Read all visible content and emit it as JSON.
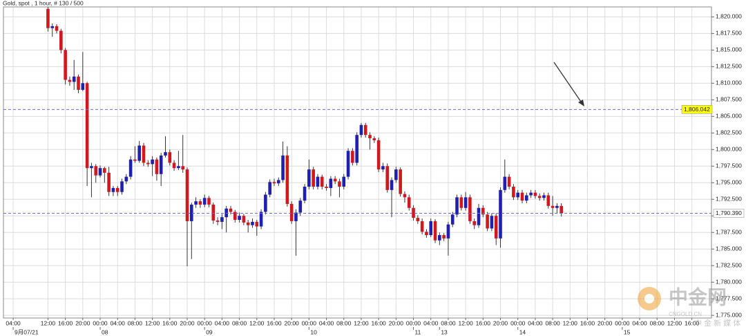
{
  "chart_data": {
    "type": "candlestick",
    "title": "Gold, spot , 1 hour, # 130 / 500",
    "categories": [
      "04:00",
      null,
      null,
      null,
      null,
      null,
      null,
      null,
      "12:00",
      null,
      null,
      null,
      "16:00",
      null,
      null,
      null,
      "20:00",
      null,
      null,
      null,
      "00:00",
      null,
      null,
      null,
      "04:00",
      null,
      null,
      null,
      "08:00",
      null,
      null,
      null,
      "12:00",
      null,
      null,
      null,
      "16:00",
      null,
      null,
      null,
      "20:00",
      null,
      null,
      null,
      "00:00",
      null,
      null,
      null,
      "04:00",
      null,
      null,
      null,
      "08:00",
      null,
      null,
      null,
      "12:00",
      null,
      null,
      null,
      "16:00",
      null,
      null,
      null,
      "20:00",
      null,
      null,
      null,
      "00:00",
      null,
      null,
      null,
      "04:00",
      null,
      null,
      null,
      "08:00",
      null,
      null,
      null,
      "12:00",
      null,
      null,
      null,
      "16:00",
      null,
      null,
      null,
      "20:00",
      null,
      null,
      null,
      "00:00",
      null,
      null,
      null,
      "04:00",
      null,
      null,
      null,
      "08:00",
      null,
      null,
      null,
      "12:00",
      null,
      null,
      null,
      "16:00",
      null,
      null,
      null,
      "20:00",
      null,
      null,
      null,
      "00:00",
      null,
      null,
      null,
      "04:00",
      null,
      null,
      null,
      "08:00",
      null,
      null,
      null,
      "12:00",
      null,
      null,
      null,
      "16:00",
      null,
      null,
      null,
      "20:00",
      null,
      null,
      null,
      "00:00",
      null,
      null,
      null,
      "04:00",
      null,
      null,
      null,
      "08:00",
      null,
      null,
      null,
      "12:00",
      null,
      null,
      null,
      "16:00",
      null,
      null,
      null,
      null
    ],
    "date_labels": [
      {
        "value": 0,
        "label": "9月07/21"
      },
      {
        "value": 20,
        "label": "08"
      },
      {
        "value": 44,
        "label": "09"
      },
      {
        "value": 68,
        "label": "10"
      },
      {
        "value": 92,
        "label": "11"
      },
      {
        "value": 98,
        "label": "13"
      },
      {
        "value": 116,
        "label": "14"
      },
      {
        "value": 140,
        "label": "15"
      }
    ],
    "open": [
      null,
      null,
      null,
      null,
      null,
      null,
      null,
      null,
      1821.2,
      1818.3,
      1818.6,
      1817.9,
      1815.0,
      1810.5,
      1810.2,
      1811.0,
      1809.0,
      1810.0,
      1797.2,
      1797.5,
      1796.1,
      1797.2,
      1796.5,
      1793.6,
      1794.2,
      1793.6,
      1795.2,
      1795.9,
      1798.5,
      1798.3,
      1800.6,
      1798.0,
      1797.8,
      1798.5,
      1796.3,
      1799.1,
      1799.6,
      1798.0,
      1797.2,
      1797.5,
      1797.0,
      1789.2,
      1791.7,
      1792.2,
      1791.7,
      1792.7,
      1791.7,
      1789.3,
      1789.1,
      1789.8,
      1791.1,
      1790.6,
      1789.4,
      1790.0,
      1789.0,
      1788.6,
      1789.1,
      1788.4,
      1790.6,
      1793.2,
      1795.1,
      1794.9,
      1795.4,
      1799.1,
      1791.8,
      1789.2,
      1790.5,
      1792.3,
      1794.4,
      1797.0,
      1794.4,
      1795.9,
      1794.4,
      1794.2,
      1795.6,
      1795.2,
      1794.4,
      1795.9,
      1799.8,
      1798.0,
      1802.2,
      1803.7,
      1802.2,
      1801.7,
      1801.4,
      1797.0,
      1797.5,
      1793.9,
      1795.4,
      1797.0,
      1793.3,
      1792.8,
      1791.2,
      1789.7,
      1789.2,
      1787.6,
      1787.1,
      1789.2,
      1786.3,
      1787.1,
      1786.6,
      1788.7,
      1790.2,
      1792.8,
      1791.2,
      1792.8,
      1789.2,
      1788.6,
      1791.2,
      1790.2,
      1788.1,
      1790.0,
      1786.6,
      1793.9,
      1795.9,
      1794.4,
      1792.8,
      1793.5,
      1792.3,
      1793.1,
      1793.5,
      1793.0,
      1792.7,
      1793.1,
      1791.5,
      1791.2,
      1791.5,
      null,
      null,
      null,
      null,
      null,
      null,
      null,
      null,
      null,
      null,
      null,
      null,
      null,
      null,
      null,
      null,
      null,
      null,
      null,
      null,
      null,
      null,
      null,
      null,
      null,
      null,
      null,
      null,
      null,
      null,
      null,
      null,
      null,
      null
    ],
    "high": [
      null,
      null,
      null,
      null,
      null,
      null,
      null,
      null,
      1821.5,
      1819.0,
      1818.9,
      1818.2,
      1815.3,
      1811.0,
      1813.5,
      1811.3,
      1814.7,
      1810.2,
      1798.0,
      1797.8,
      1797.6,
      1797.4,
      1797.4,
      1794.5,
      1794.5,
      1795.6,
      1796.3,
      1799.0,
      1800.5,
      1801.3,
      1801.0,
      1798.4,
      1799.0,
      1798.8,
      1799.5,
      1802.0,
      1800.0,
      1798.4,
      1799.8,
      1802.2,
      1797.3,
      1792.0,
      1792.8,
      1792.5,
      1793.2,
      1793.0,
      1792.0,
      1789.8,
      1790.3,
      1791.5,
      1791.5,
      1790.9,
      1790.5,
      1790.3,
      1789.4,
      1789.6,
      1789.4,
      1791.0,
      1793.6,
      1795.5,
      1795.6,
      1795.8,
      1801.2,
      1800.5,
      1792.2,
      1791.0,
      1792.7,
      1794.8,
      1798.5,
      1797.4,
      1796.3,
      1796.2,
      1794.8,
      1796.0,
      1796.0,
      1795.6,
      1796.3,
      1800.2,
      1800.2,
      1802.6,
      1804.0,
      1804.0,
      1802.6,
      1802.0,
      1801.8,
      1798.0,
      1797.9,
      1795.8,
      1797.4,
      1797.3,
      1793.7,
      1793.2,
      1791.6,
      1790.1,
      1789.6,
      1788.0,
      1789.6,
      1789.5,
      1787.5,
      1787.4,
      1789.1,
      1790.6,
      1793.2,
      1793.2,
      1793.6,
      1793.2,
      1789.6,
      1791.8,
      1791.6,
      1790.6,
      1790.4,
      1790.4,
      1794.3,
      1798.5,
      1796.3,
      1794.8,
      1793.9,
      1793.9,
      1793.5,
      1793.9,
      1793.9,
      1793.4,
      1793.5,
      1793.5,
      1793.0,
      1791.9,
      1791.9,
      null,
      null,
      null,
      null,
      null,
      null,
      null,
      null,
      null,
      null,
      null,
      null,
      null,
      null,
      null,
      null,
      null,
      null,
      null,
      null,
      null,
      null,
      null,
      null,
      null,
      null,
      null,
      null,
      null,
      null,
      null,
      null,
      null,
      null
    ],
    "low": [
      null,
      null,
      null,
      null,
      null,
      null,
      null,
      null,
      1817.8,
      1817.0,
      1817.5,
      1814.5,
      1809.8,
      1809.6,
      1809.0,
      1808.5,
      1808.8,
      1794.5,
      1792.8,
      1795.0,
      1795.8,
      1795.0,
      1793.0,
      1793.0,
      1793.0,
      1793.2,
      1794.8,
      1795.5,
      1798.0,
      1798.0,
      1797.5,
      1797.4,
      1796.0,
      1795.3,
      1794.5,
      1798.8,
      1797.6,
      1796.8,
      1796.9,
      1796.5,
      1782.4,
      1783.5,
      1791.2,
      1791.2,
      1791.3,
      1791.3,
      1788.8,
      1788.6,
      1788.0,
      1787.5,
      1790.2,
      1789.0,
      1789.0,
      1788.6,
      1787.5,
      1788.2,
      1787.0,
      1788.0,
      1790.2,
      1792.8,
      1794.5,
      1794.5,
      1795.0,
      1791.4,
      1788.8,
      1784.0,
      1790.0,
      1791.9,
      1794.0,
      1794.0,
      1794.0,
      1794.0,
      1793.8,
      1793.0,
      1794.8,
      1792.8,
      1794.0,
      1795.5,
      1797.6,
      1797.6,
      1801.8,
      1801.8,
      1800.0,
      1801.0,
      1796.6,
      1796.6,
      1793.5,
      1789.8,
      1795.0,
      1792.9,
      1792.0,
      1790.8,
      1789.3,
      1788.8,
      1787.2,
      1786.7,
      1786.8,
      1785.9,
      1785.6,
      1786.2,
      1784.0,
      1788.3,
      1789.8,
      1790.8,
      1790.8,
      1788.8,
      1788.0,
      1788.2,
      1789.8,
      1787.7,
      1787.7,
      1785.6,
      1785.2,
      1793.5,
      1794.0,
      1792.4,
      1792.4,
      1791.9,
      1791.9,
      1792.7,
      1792.6,
      1792.3,
      1792.3,
      1791.1,
      1790.0,
      1790.3,
      1789.9,
      null,
      null,
      null,
      null,
      null,
      null,
      null,
      null,
      null,
      null,
      null,
      null,
      null,
      null,
      null,
      null,
      null,
      null,
      null,
      null,
      null,
      null,
      null,
      null,
      null,
      null,
      null,
      null,
      null,
      null,
      null,
      null,
      null,
      null
    ],
    "close": [
      null,
      null,
      null,
      null,
      null,
      null,
      null,
      null,
      1818.3,
      1818.6,
      1817.9,
      1815.0,
      1810.5,
      1810.2,
      1811.0,
      1809.0,
      1810.0,
      1797.2,
      1797.5,
      1796.1,
      1797.2,
      1796.5,
      1793.6,
      1794.2,
      1793.6,
      1795.2,
      1795.9,
      1798.5,
      1798.3,
      1800.6,
      1798.0,
      1797.8,
      1798.5,
      1796.3,
      1799.1,
      1799.6,
      1798.0,
      1797.2,
      1797.5,
      1797.0,
      1789.2,
      1791.7,
      1792.2,
      1791.7,
      1792.7,
      1791.7,
      1789.3,
      1789.1,
      1789.8,
      1791.1,
      1790.6,
      1789.4,
      1790.0,
      1789.0,
      1788.6,
      1789.1,
      1788.4,
      1790.6,
      1793.2,
      1795.1,
      1794.9,
      1795.4,
      1799.1,
      1791.8,
      1789.2,
      1790.5,
      1792.3,
      1794.4,
      1797.0,
      1794.4,
      1795.9,
      1794.4,
      1794.2,
      1795.6,
      1795.2,
      1794.4,
      1795.9,
      1799.8,
      1798.0,
      1802.2,
      1803.7,
      1802.2,
      1801.7,
      1801.4,
      1797.0,
      1797.5,
      1793.9,
      1795.4,
      1797.0,
      1793.3,
      1792.8,
      1791.2,
      1789.7,
      1789.2,
      1787.6,
      1787.1,
      1789.2,
      1786.3,
      1787.1,
      1786.6,
      1788.7,
      1790.2,
      1792.8,
      1791.2,
      1792.8,
      1789.2,
      1788.6,
      1791.2,
      1790.2,
      1788.1,
      1790.0,
      1786.6,
      1793.9,
      1795.9,
      1794.4,
      1792.8,
      1793.5,
      1792.3,
      1793.1,
      1793.5,
      1793.0,
      1792.7,
      1793.1,
      1791.5,
      1791.2,
      1791.5,
      1790.39,
      null,
      null,
      null,
      null,
      null,
      null,
      null,
      null,
      null,
      null,
      null,
      null,
      null,
      null,
      null,
      null,
      null,
      null,
      null,
      null,
      null,
      null,
      null,
      null,
      null,
      null,
      null,
      null,
      null,
      null,
      null,
      null,
      null,
      null
    ],
    "up_color": "#1f1fb0",
    "down_color": "#d0191e",
    "ylim": [
      1774.6,
      1821.5
    ],
    "yticks": [
      {
        "value": 1775,
        "label": "1,775.000"
      },
      {
        "value": 1777.5,
        "label": "1,777.500"
      },
      {
        "value": 1780,
        "label": "1,780.000"
      },
      {
        "value": 1782.5,
        "label": "1,782.500"
      },
      {
        "value": 1785,
        "label": "1,785.000"
      },
      {
        "value": 1787.5,
        "label": "1,787.500"
      },
      {
        "value": 1790,
        "label": "1,790.000"
      },
      {
        "value": 1792.5,
        "label": "1,792.500"
      },
      {
        "value": 1795,
        "label": "1,795.000"
      },
      {
        "value": 1797.5,
        "label": "1,797.500"
      },
      {
        "value": 1800,
        "label": "1,800.000"
      },
      {
        "value": 1802.5,
        "label": "1,802.500"
      },
      {
        "value": 1805,
        "label": "1,805.000"
      },
      {
        "value": 1807.5,
        "label": "1,807.500"
      },
      {
        "value": 1810,
        "label": "1,810.000"
      },
      {
        "value": 1812.5,
        "label": "1,812.500"
      },
      {
        "value": 1815,
        "label": "1,815.000"
      },
      {
        "value": 1817.5,
        "label": "1,817.500"
      },
      {
        "value": 1820,
        "label": "1,820.000"
      }
    ],
    "grid": true,
    "price_lines": [
      {
        "value": 1806.042,
        "label": "1,806.042",
        "color": "#ffff00"
      },
      {
        "value": 1790.39,
        "label": "1,790.390",
        "color": "#ffffff"
      }
    ],
    "watermark": {
      "brand": "中金网",
      "site": "CNGOLD.CN",
      "tagline": "中 金 新 媒 体"
    }
  }
}
